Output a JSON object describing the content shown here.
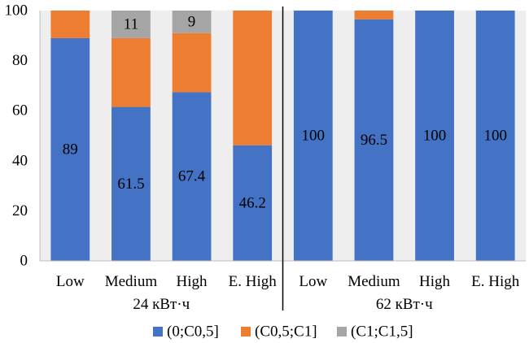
{
  "chart_data": {
    "type": "bar",
    "stacked": true,
    "ylim": [
      0,
      100
    ],
    "yticks": [
      0,
      20,
      40,
      60,
      80,
      100
    ],
    "grid": false,
    "groups": [
      {
        "label": "24 кВт·ч",
        "categories": [
          "Low",
          "Medium",
          "High",
          "E. High"
        ],
        "series_values": [
          [
            89,
            61.5,
            67.4,
            46.2
          ],
          [
            11,
            27.5,
            23.6,
            53.8
          ],
          [
            0,
            11,
            9,
            0
          ]
        ],
        "data_labels": [
          [
            "89",
            "61.5",
            "67.4",
            "46.2"
          ],
          [
            "",
            "",
            "",
            ""
          ],
          [
            "",
            "11",
            "9",
            ""
          ]
        ]
      },
      {
        "label": "62 кВт·ч",
        "categories": [
          "Low",
          "Medium",
          "High",
          "E. High"
        ],
        "series_values": [
          [
            100,
            96.5,
            100,
            100
          ],
          [
            0,
            3.5,
            0,
            0
          ],
          [
            0,
            0,
            0,
            0
          ]
        ],
        "data_labels": [
          [
            "100",
            "96.5",
            "100",
            "100"
          ],
          [
            "",
            "",
            "",
            ""
          ],
          [
            "",
            "",
            "",
            ""
          ]
        ]
      }
    ],
    "series": [
      {
        "name": "(0;C0,5]",
        "color": "#4472C4"
      },
      {
        "name": "(C0,5;C1]",
        "color": "#ED7D31"
      },
      {
        "name": "(C1;C1,5]",
        "color": "#A5A5A5"
      }
    ],
    "legend_position": "bottom"
  }
}
